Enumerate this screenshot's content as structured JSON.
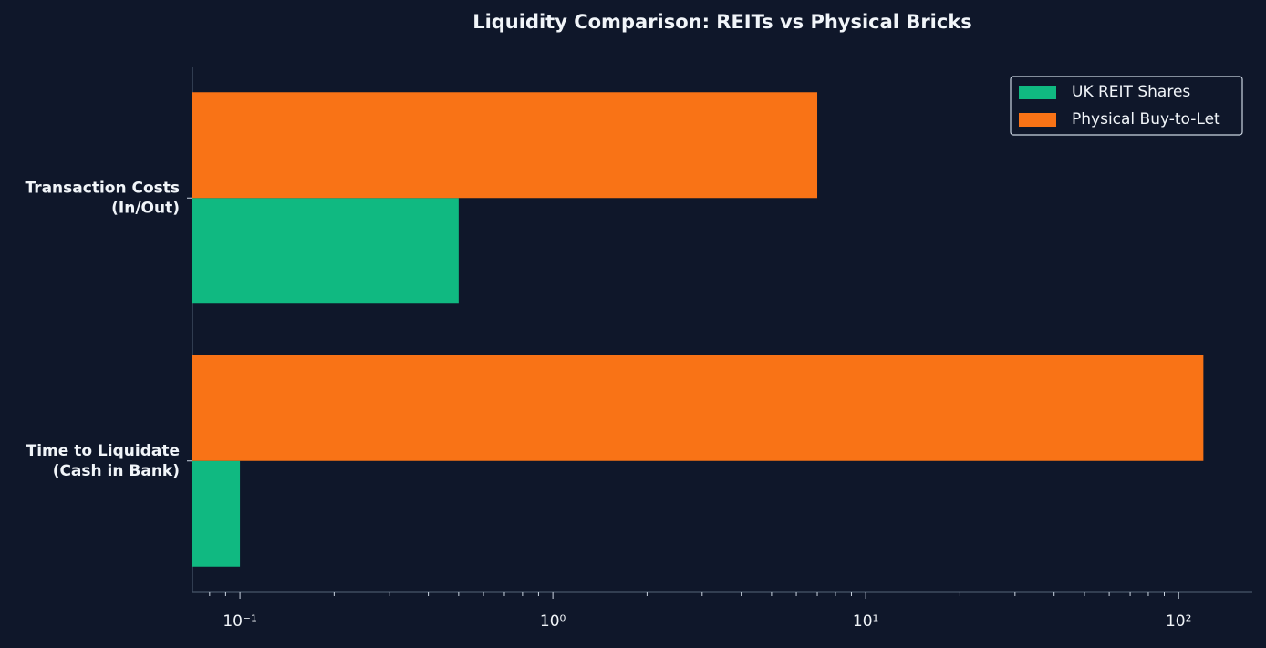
{
  "chart_data": {
    "type": "barh",
    "title": "Liquidity Comparison: REITs vs Physical Bricks",
    "categories": [
      "Transaction Costs\n(In/Out)",
      "Time to Liquidate\n(Cash in Bank)"
    ],
    "series": [
      {
        "name": "UK REIT Shares",
        "color": "#10b981",
        "values": [
          0.5,
          0.1
        ]
      },
      {
        "name": "Physical Buy-to-Let",
        "color": "#f97316",
        "values": [
          7,
          120
        ]
      }
    ],
    "xscale": "log",
    "xlim": [
      0.0705,
      172
    ],
    "xticks": [
      {
        "value": 0.1,
        "label": "10⁻¹"
      },
      {
        "value": 1,
        "label": "10⁰"
      },
      {
        "value": 10,
        "label": "10¹"
      },
      {
        "value": 100,
        "label": "10²"
      }
    ],
    "legend": "upper right"
  }
}
